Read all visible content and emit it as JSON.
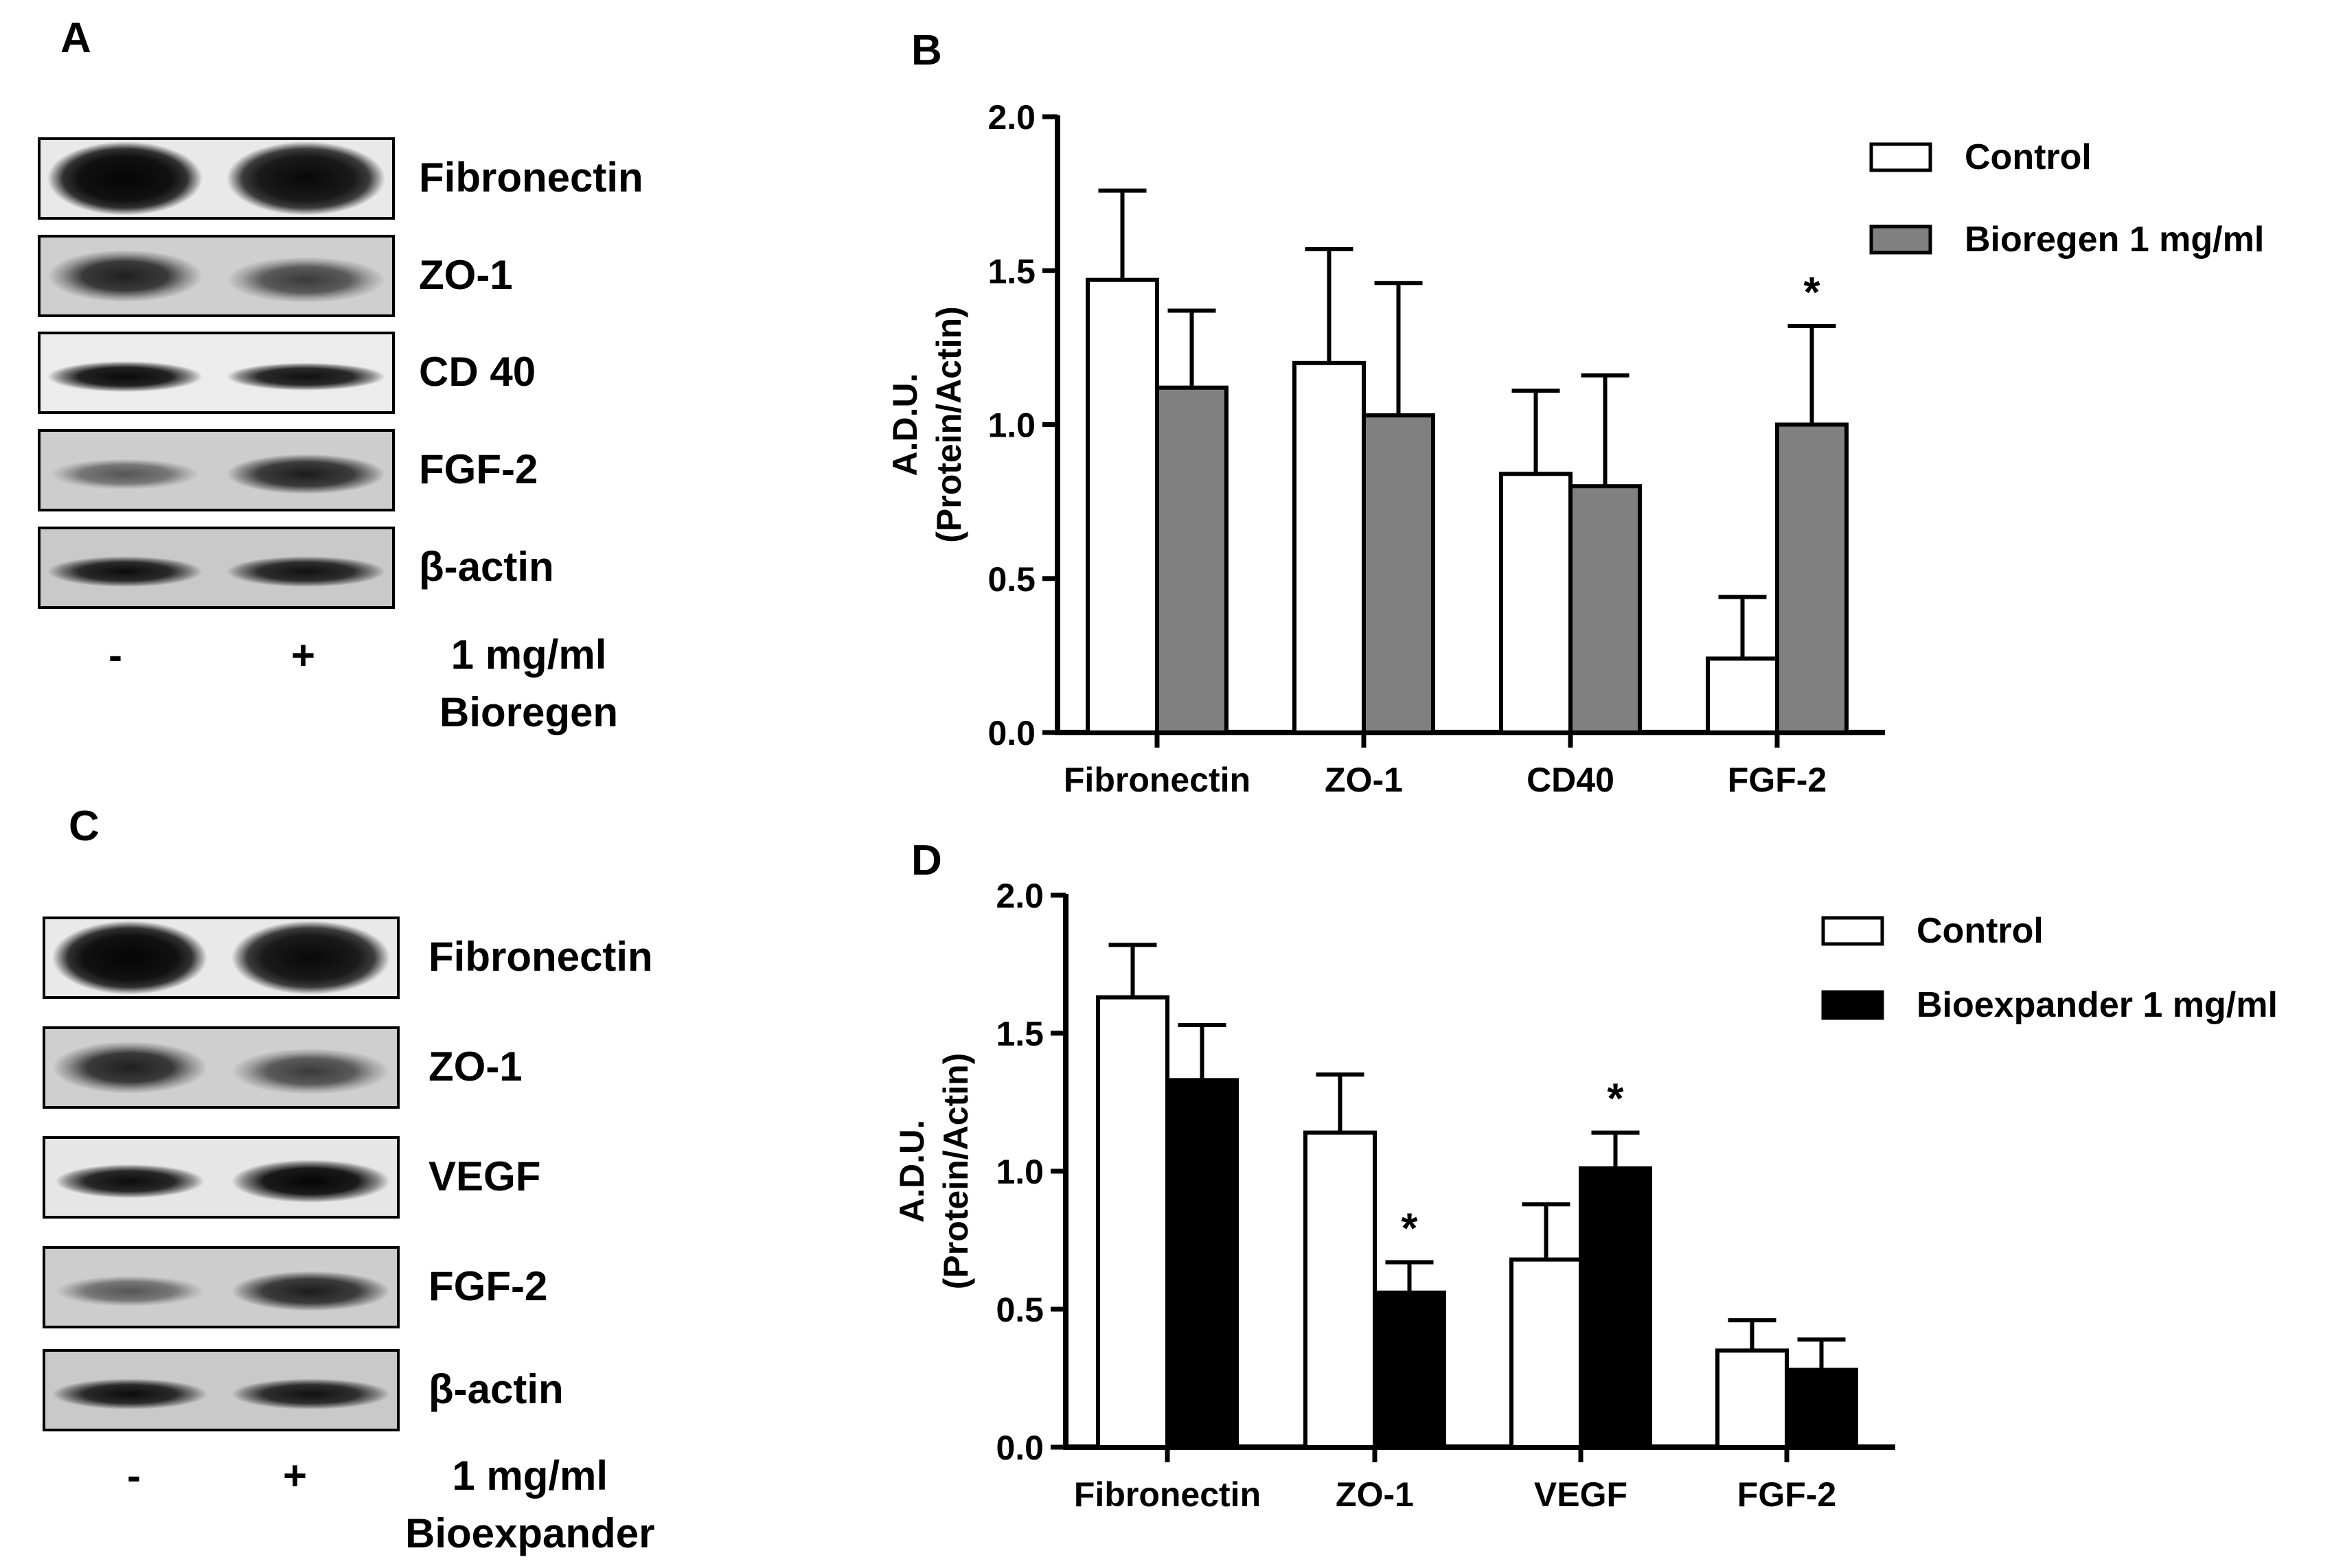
{
  "panels": {
    "a": {
      "letter": "A",
      "bands": [
        {
          "label": "Fibronectin",
          "style": "fib"
        },
        {
          "label": "ZO-1",
          "style": "zo"
        },
        {
          "label": "CD 40",
          "style": "cd40"
        },
        {
          "label": "FGF-2",
          "style": "fgf"
        },
        {
          "label": "β-actin",
          "style": "actin"
        }
      ],
      "lane_minus": "-",
      "lane_plus": "+",
      "treatment_line1": "1 mg/ml",
      "treatment_line2": "Bioregen"
    },
    "b": {
      "letter": "B"
    },
    "c": {
      "letter": "C",
      "bands": [
        {
          "label": "Fibronectin",
          "style": "fib"
        },
        {
          "label": "ZO-1",
          "style": "zo"
        },
        {
          "label": "VEGF",
          "style": "vegf"
        },
        {
          "label": "FGF-2",
          "style": "fgf"
        },
        {
          "label": "β-actin",
          "style": "actin"
        }
      ],
      "lane_minus": "-",
      "lane_plus": "+",
      "treatment_line1": "1 mg/ml",
      "treatment_line2": "Bioexpander"
    },
    "d": {
      "letter": "D"
    }
  },
  "colors": {
    "control": "#ffffff",
    "bioregen": "#808080",
    "bioexpander": "#000000",
    "axis": "#000000"
  },
  "chart_data": [
    {
      "id": "B",
      "type": "bar",
      "ylabel_line1": "A.D.U.",
      "ylabel_line2": "(Protein/Actin)",
      "ylim": [
        0,
        2.0
      ],
      "yticks": [
        "0.0",
        "0.5",
        "1.0",
        "1.5",
        "2.0"
      ],
      "categories": [
        "Fibronectin",
        "ZO-1",
        "CD40",
        "FGF-2"
      ],
      "series": [
        {
          "name": "Control",
          "color": "#ffffff",
          "values": [
            1.47,
            1.2,
            0.84,
            0.24
          ],
          "errors": [
            0.29,
            0.37,
            0.27,
            0.2
          ]
        },
        {
          "name": "Bioregen 1 mg/ml",
          "color": "#808080",
          "values": [
            1.12,
            1.03,
            0.8,
            1.0
          ],
          "errors": [
            0.25,
            0.43,
            0.36,
            0.32
          ]
        }
      ],
      "annotations": [
        {
          "category": 3,
          "series": 1,
          "text": "*"
        }
      ],
      "legend_position": "top-right"
    },
    {
      "id": "D",
      "type": "bar",
      "ylabel_line1": "A.D.U.",
      "ylabel_line2": "(Protein/Actin)",
      "ylim": [
        0,
        2.0
      ],
      "yticks": [
        "0.0",
        "0.5",
        "1.0",
        "1.5",
        "2.0"
      ],
      "categories": [
        "Fibronectin",
        "ZO-1",
        "VEGF",
        "FGF-2"
      ],
      "series": [
        {
          "name": "Control",
          "color": "#ffffff",
          "values": [
            1.63,
            1.14,
            0.68,
            0.35
          ],
          "errors": [
            0.19,
            0.21,
            0.2,
            0.11
          ]
        },
        {
          "name": "Bioexpander 1 mg/ml",
          "color": "#000000",
          "values": [
            1.33,
            0.56,
            1.01,
            0.28
          ],
          "errors": [
            0.2,
            0.11,
            0.13,
            0.11
          ]
        }
      ],
      "annotations": [
        {
          "category": 1,
          "series": 1,
          "text": "*"
        },
        {
          "category": 2,
          "series": 1,
          "text": "*"
        }
      ],
      "legend_position": "top-right"
    }
  ]
}
